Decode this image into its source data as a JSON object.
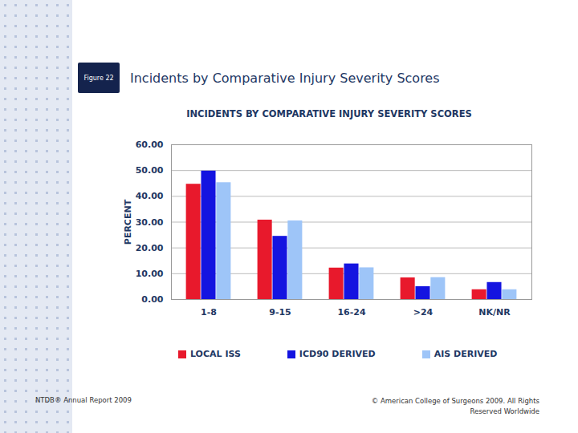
{
  "page": {
    "figure_label": "Figure 22",
    "heading": "Incidents by Comparative Injury Severity Scores",
    "footer_left": "NTDB® Annual Report 2009",
    "footer_right": "© American College of Surgeons 2009. All Rights Reserved Worldwide"
  },
  "chart_data": {
    "type": "bar",
    "title": "INCIDENTS BY COMPARATIVE INJURY SEVERITY SCORES",
    "y_label": "PERCENT",
    "categories": [
      "1-8",
      "9-15",
      "16-24",
      ">24",
      "NK/NR"
    ],
    "series": [
      {
        "name": "LOCAL ISS",
        "color": "#e8192c",
        "values": [
          44.7,
          30.8,
          12.2,
          8.4,
          3.8
        ]
      },
      {
        "name": "ICD90 DERIVED",
        "color": "#1414e0",
        "values": [
          49.8,
          24.5,
          13.8,
          5.0,
          6.6
        ]
      },
      {
        "name": "AIS DERIVED",
        "color": "#9ec5f8",
        "values": [
          45.3,
          30.5,
          12.3,
          8.5,
          3.8
        ]
      }
    ],
    "ylim": [
      0,
      60
    ],
    "yticks": [
      {
        "value": 0,
        "label": "0.00"
      },
      {
        "value": 10,
        "label": "10.00"
      },
      {
        "value": 20,
        "label": "20.00"
      },
      {
        "value": 30,
        "label": "30.00"
      },
      {
        "value": 40,
        "label": "40.00"
      },
      {
        "value": 50,
        "label": "50.00"
      },
      {
        "value": 60,
        "label": "60.00"
      }
    ],
    "grid": true,
    "legend": "bottom"
  }
}
